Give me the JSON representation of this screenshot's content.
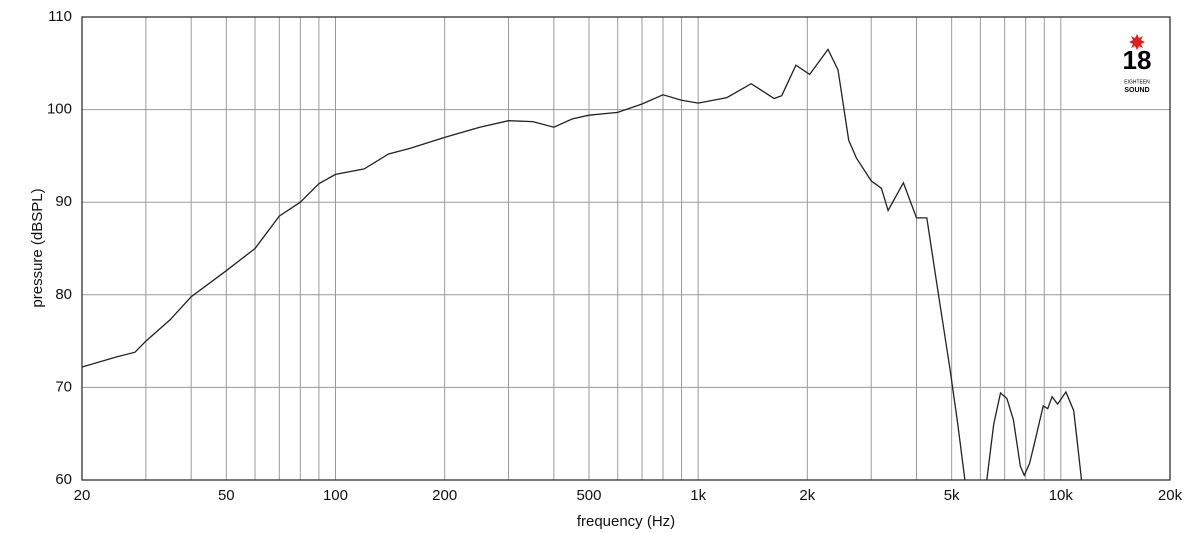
{
  "chart_data": {
    "type": "line",
    "x_label": "frequency (Hz)",
    "y_label": "pressure (dBSPL)",
    "xscale": "log",
    "xlim": [
      20,
      20000
    ],
    "ylim": [
      60,
      110
    ],
    "xticks": [
      20,
      50,
      100,
      200,
      500,
      {
        "value": 1000,
        "label": "1k"
      },
      {
        "value": 2000,
        "label": "2k"
      },
      {
        "value": 5000,
        "label": "5k"
      },
      {
        "value": 10000,
        "label": "10k"
      },
      {
        "value": 20000,
        "label": "20k"
      }
    ],
    "xminor_ticks": [
      30,
      40,
      60,
      70,
      80,
      90,
      300,
      400,
      600,
      700,
      800,
      900,
      3000,
      4000,
      6000,
      7000,
      8000,
      9000
    ],
    "yticks": [
      60,
      70,
      80,
      90,
      100,
      110
    ],
    "grid": true,
    "series": [
      {
        "color": "#222222",
        "x": [
          20,
          25,
          28,
          30,
          35,
          40,
          50,
          60,
          70,
          80,
          90,
          100,
          120,
          140,
          160,
          200,
          250,
          300,
          350,
          400,
          450,
          500,
          600,
          700,
          800,
          900,
          1000,
          1200,
          1400,
          1620,
          1700,
          1860,
          2030,
          2280,
          2430,
          2600,
          2730,
          3000,
          3200,
          3340,
          3680,
          4000,
          4270,
          4580,
          4950,
          5200,
          5440,
          5800,
          6250,
          6530,
          6820,
          7100,
          7400,
          7730,
          7930,
          8200,
          8500,
          8940,
          9200,
          9460,
          9800,
          10330,
          10850,
          11110,
          11400
        ],
        "values": [
          72.2,
          73.3,
          73.8,
          75,
          77.3,
          79.8,
          82.6,
          85,
          88.5,
          90,
          92,
          93,
          93.6,
          95.2,
          95.8,
          97,
          98.1,
          98.8,
          98.7,
          98.1,
          99,
          99.4,
          99.7,
          100.6,
          101.6,
          101,
          100.7,
          101.3,
          102.8,
          101.2,
          101.5,
          104.8,
          103.8,
          106.5,
          104.3,
          96.7,
          94.8,
          92.3,
          91.5,
          89.1,
          92.1,
          88.3,
          88.3,
          80.5,
          71.9,
          66,
          60,
          null,
          60,
          66,
          69.4,
          68.8,
          66.5,
          61.5,
          60.5,
          61.8,
          64.3,
          68,
          67.7,
          69,
          68.2,
          69.5,
          67.5,
          64,
          60
        ]
      }
    ]
  },
  "logo": {
    "number": "18",
    "line1": "EIGHTEEN",
    "line2": "SOUND"
  }
}
